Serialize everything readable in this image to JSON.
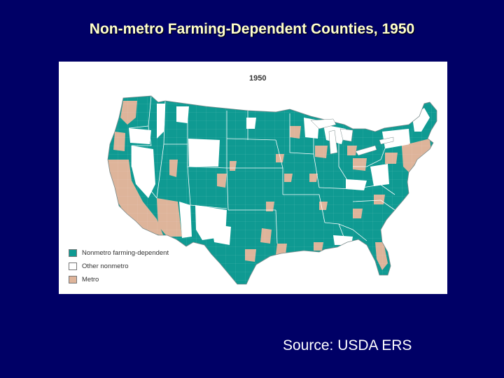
{
  "slide": {
    "title": "Non-metro Farming-Dependent Counties, 1950",
    "source": "Source: USDA ERS"
  },
  "map": {
    "year": "1950",
    "colors": {
      "farming_dependent": "#0f9a92",
      "other_nonmetro": "#ffffff",
      "metro": "#deb49a",
      "state_border": "#ffffff"
    },
    "legend": [
      {
        "label": "Nonmetro farming-dependent",
        "color": "#0f9a92"
      },
      {
        "label": "Other nonmetro",
        "color": "#ffffff"
      },
      {
        "label": "Metro",
        "color": "#deb49a"
      }
    ]
  }
}
